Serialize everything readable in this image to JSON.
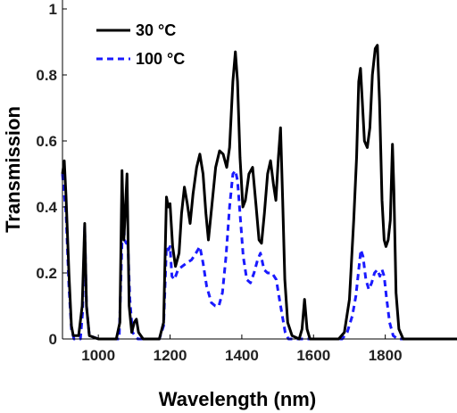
{
  "chart_data": {
    "type": "line",
    "xlabel": "Wavelength (nm)",
    "ylabel": "Transmission",
    "xlim": [
      900,
      2000
    ],
    "ylim": [
      0,
      1
    ],
    "xticks": [
      1000,
      1200,
      1400,
      1600,
      1800
    ],
    "yticks": [
      0,
      0.2,
      0.4,
      0.6,
      0.8,
      1
    ],
    "ytick_labels": [
      "0",
      "0.2",
      "0.4",
      "0.6",
      "0.8",
      "1"
    ],
    "xtick_labels": [
      "1000",
      "1200",
      "1400",
      "1600",
      "1800"
    ],
    "grid": false,
    "legend": "top-left",
    "series": [
      {
        "name": "30 °C",
        "color": "#000000",
        "style": "solid",
        "points": [
          [
            900,
            0.5
          ],
          [
            905,
            0.54
          ],
          [
            910,
            0.43
          ],
          [
            918,
            0.2
          ],
          [
            925,
            0.04
          ],
          [
            930,
            0.01
          ],
          [
            945,
            0.01
          ],
          [
            955,
            0.1
          ],
          [
            962,
            0.35
          ],
          [
            967,
            0.1
          ],
          [
            975,
            0.01
          ],
          [
            1000,
            0.0
          ],
          [
            1050,
            0.0
          ],
          [
            1060,
            0.05
          ],
          [
            1066,
            0.51
          ],
          [
            1071,
            0.3
          ],
          [
            1074,
            0.36
          ],
          [
            1080,
            0.5
          ],
          [
            1086,
            0.1
          ],
          [
            1093,
            0.02
          ],
          [
            1100,
            0.05
          ],
          [
            1106,
            0.06
          ],
          [
            1112,
            0.02
          ],
          [
            1125,
            0.0
          ],
          [
            1170,
            0.0
          ],
          [
            1182,
            0.05
          ],
          [
            1190,
            0.43
          ],
          [
            1195,
            0.4
          ],
          [
            1200,
            0.41
          ],
          [
            1207,
            0.28
          ],
          [
            1215,
            0.22
          ],
          [
            1225,
            0.26
          ],
          [
            1232,
            0.38
          ],
          [
            1240,
            0.46
          ],
          [
            1248,
            0.41
          ],
          [
            1256,
            0.35
          ],
          [
            1264,
            0.44
          ],
          [
            1274,
            0.52
          ],
          [
            1283,
            0.56
          ],
          [
            1292,
            0.5
          ],
          [
            1300,
            0.38
          ],
          [
            1307,
            0.3
          ],
          [
            1316,
            0.4
          ],
          [
            1327,
            0.52
          ],
          [
            1338,
            0.57
          ],
          [
            1348,
            0.56
          ],
          [
            1358,
            0.52
          ],
          [
            1366,
            0.58
          ],
          [
            1375,
            0.78
          ],
          [
            1382,
            0.87
          ],
          [
            1388,
            0.78
          ],
          [
            1395,
            0.55
          ],
          [
            1403,
            0.4
          ],
          [
            1410,
            0.42
          ],
          [
            1420,
            0.5
          ],
          [
            1430,
            0.52
          ],
          [
            1440,
            0.4
          ],
          [
            1448,
            0.3
          ],
          [
            1455,
            0.29
          ],
          [
            1463,
            0.38
          ],
          [
            1472,
            0.5
          ],
          [
            1480,
            0.54
          ],
          [
            1488,
            0.47
          ],
          [
            1495,
            0.42
          ],
          [
            1502,
            0.55
          ],
          [
            1508,
            0.64
          ],
          [
            1514,
            0.42
          ],
          [
            1520,
            0.18
          ],
          [
            1528,
            0.05
          ],
          [
            1540,
            0.01
          ],
          [
            1560,
            0.0
          ],
          [
            1568,
            0.03
          ],
          [
            1575,
            0.12
          ],
          [
            1582,
            0.03
          ],
          [
            1590,
            0.0
          ],
          [
            1670,
            0.0
          ],
          [
            1686,
            0.02
          ],
          [
            1700,
            0.12
          ],
          [
            1712,
            0.36
          ],
          [
            1720,
            0.55
          ],
          [
            1726,
            0.78
          ],
          [
            1731,
            0.82
          ],
          [
            1736,
            0.72
          ],
          [
            1742,
            0.6
          ],
          [
            1750,
            0.58
          ],
          [
            1757,
            0.64
          ],
          [
            1764,
            0.8
          ],
          [
            1772,
            0.88
          ],
          [
            1778,
            0.89
          ],
          [
            1784,
            0.72
          ],
          [
            1791,
            0.42
          ],
          [
            1797,
            0.3
          ],
          [
            1802,
            0.28
          ],
          [
            1808,
            0.3
          ],
          [
            1814,
            0.36
          ],
          [
            1820,
            0.59
          ],
          [
            1824,
            0.45
          ],
          [
            1830,
            0.14
          ],
          [
            1838,
            0.03
          ],
          [
            1850,
            0.0
          ],
          [
            1900,
            0.0
          ],
          [
            2000,
            0.0
          ]
        ]
      },
      {
        "name": "100 °C",
        "color": "#1a1aff",
        "style": "dashed",
        "points": [
          [
            900,
            0.5
          ],
          [
            905,
            0.44
          ],
          [
            910,
            0.38
          ],
          [
            918,
            0.16
          ],
          [
            925,
            0.03
          ],
          [
            932,
            0.0
          ],
          [
            950,
            0.0
          ],
          [
            956,
            0.08
          ],
          [
            962,
            0.34
          ],
          [
            967,
            0.1
          ],
          [
            975,
            0.01
          ],
          [
            1000,
            0.0
          ],
          [
            1058,
            0.0
          ],
          [
            1064,
            0.22
          ],
          [
            1069,
            0.4
          ],
          [
            1073,
            0.3
          ],
          [
            1078,
            0.29
          ],
          [
            1082,
            0.3
          ],
          [
            1088,
            0.12
          ],
          [
            1095,
            0.02
          ],
          [
            1110,
            0.0
          ],
          [
            1170,
            0.0
          ],
          [
            1182,
            0.04
          ],
          [
            1190,
            0.28
          ],
          [
            1196,
            0.27
          ],
          [
            1200,
            0.28
          ],
          [
            1205,
            0.19
          ],
          [
            1212,
            0.18
          ],
          [
            1222,
            0.21
          ],
          [
            1234,
            0.22
          ],
          [
            1246,
            0.23
          ],
          [
            1260,
            0.24
          ],
          [
            1272,
            0.26
          ],
          [
            1283,
            0.28
          ],
          [
            1292,
            0.23
          ],
          [
            1302,
            0.16
          ],
          [
            1315,
            0.11
          ],
          [
            1326,
            0.1
          ],
          [
            1336,
            0.1
          ],
          [
            1346,
            0.14
          ],
          [
            1356,
            0.25
          ],
          [
            1366,
            0.4
          ],
          [
            1375,
            0.5
          ],
          [
            1382,
            0.51
          ],
          [
            1388,
            0.48
          ],
          [
            1395,
            0.38
          ],
          [
            1404,
            0.25
          ],
          [
            1414,
            0.18
          ],
          [
            1424,
            0.17
          ],
          [
            1434,
            0.2
          ],
          [
            1444,
            0.24
          ],
          [
            1452,
            0.26
          ],
          [
            1462,
            0.21
          ],
          [
            1472,
            0.2
          ],
          [
            1484,
            0.2
          ],
          [
            1496,
            0.18
          ],
          [
            1505,
            0.12
          ],
          [
            1513,
            0.07
          ],
          [
            1521,
            0.02
          ],
          [
            1530,
            0.0
          ],
          [
            1680,
            0.0
          ],
          [
            1694,
            0.02
          ],
          [
            1708,
            0.07
          ],
          [
            1718,
            0.13
          ],
          [
            1726,
            0.21
          ],
          [
            1732,
            0.27
          ],
          [
            1738,
            0.25
          ],
          [
            1746,
            0.18
          ],
          [
            1754,
            0.15
          ],
          [
            1762,
            0.17
          ],
          [
            1770,
            0.2
          ],
          [
            1778,
            0.21
          ],
          [
            1785,
            0.19
          ],
          [
            1791,
            0.21
          ],
          [
            1797,
            0.19
          ],
          [
            1803,
            0.13
          ],
          [
            1812,
            0.05
          ],
          [
            1822,
            0.01
          ],
          [
            1835,
            0.0
          ],
          [
            2000,
            0.0
          ]
        ]
      }
    ]
  }
}
